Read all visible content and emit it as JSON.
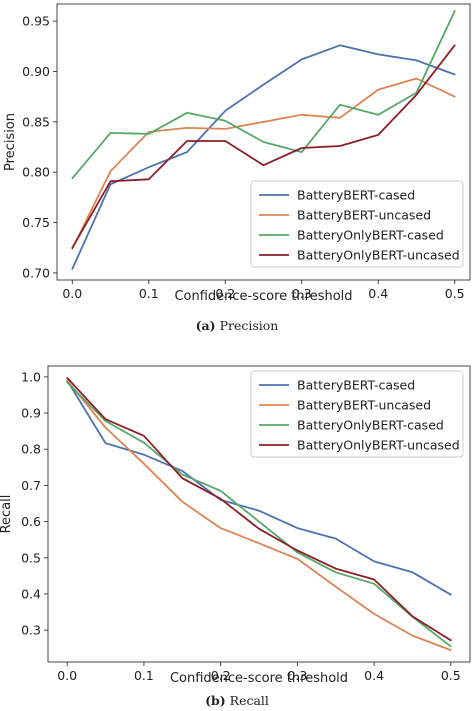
{
  "chart_data": [
    {
      "type": "line",
      "caption_label": "(a)",
      "caption_text": "Precision",
      "xlabel": "Confidence-score threshold",
      "ylabel": "Precision",
      "x": [
        0.0,
        0.05,
        0.1,
        0.15,
        0.2,
        0.25,
        0.3,
        0.35,
        0.4,
        0.45,
        0.5
      ],
      "xlim": [
        -0.02,
        0.52
      ],
      "ylim": [
        0.693,
        0.967
      ],
      "xticks": [
        "0.0",
        "0.1",
        "0.2",
        "0.3",
        "0.4",
        "0.5"
      ],
      "xtick_values": [
        0.0,
        0.1,
        0.2,
        0.3,
        0.4,
        0.5
      ],
      "yticks": [
        "0.70",
        "0.75",
        "0.80",
        "0.85",
        "0.90",
        "0.95"
      ],
      "ytick_values": [
        0.7,
        0.75,
        0.8,
        0.85,
        0.9,
        0.95
      ],
      "legend_position": "bottom-right",
      "grid": false,
      "series": [
        {
          "name": "BatteryBERT-cased",
          "color": "#4c72b0",
          "values": [
            0.704,
            0.788,
            0.805,
            0.82,
            0.861,
            0.887,
            0.912,
            0.926,
            0.917,
            0.911,
            0.897
          ]
        },
        {
          "name": "BatteryBERT-uncased",
          "color": "#dd8452",
          "values": [
            0.724,
            0.801,
            0.84,
            0.844,
            0.843,
            0.85,
            0.857,
            0.854,
            0.882,
            0.893,
            0.875
          ]
        },
        {
          "name": "BatteryOnlyBERT-cased",
          "color": "#55a868",
          "values": [
            0.794,
            0.839,
            0.838,
            0.859,
            0.851,
            0.83,
            0.82,
            0.867,
            0.857,
            0.879,
            0.96
          ]
        },
        {
          "name": "BatteryOnlyBERT-uncased",
          "color": "#8c1f28",
          "values": [
            0.725,
            0.791,
            0.793,
            0.831,
            0.831,
            0.807,
            0.824,
            0.826,
            0.837,
            0.877,
            0.926
          ]
        }
      ]
    },
    {
      "type": "line",
      "caption_label": "(b)",
      "caption_text": "Recall",
      "xlabel": "Confidence-score threshold",
      "ylabel": "Recall",
      "x": [
        0.0,
        0.05,
        0.1,
        0.15,
        0.2,
        0.25,
        0.3,
        0.35,
        0.4,
        0.45,
        0.5
      ],
      "xlim": [
        -0.025,
        0.525
      ],
      "ylim": [
        0.212,
        1.03
      ],
      "xticks": [
        "0.0",
        "0.1",
        "0.2",
        "0.3",
        "0.4",
        "0.5"
      ],
      "xtick_values": [
        0.0,
        0.1,
        0.2,
        0.3,
        0.4,
        0.5
      ],
      "yticks": [
        "0.3",
        "0.4",
        "0.5",
        "0.6",
        "0.7",
        "0.8",
        "0.9",
        "1.0"
      ],
      "ytick_values": [
        0.3,
        0.4,
        0.5,
        0.6,
        0.7,
        0.8,
        0.9,
        1.0
      ],
      "legend_position": "top-right",
      "grid": false,
      "series": [
        {
          "name": "BatteryBERT-cased",
          "color": "#4c72b0",
          "values": [
            0.99,
            0.817,
            0.785,
            0.74,
            0.66,
            0.63,
            0.582,
            0.553,
            0.49,
            0.46,
            0.398
          ]
        },
        {
          "name": "BatteryBERT-uncased",
          "color": "#dd8452",
          "values": [
            0.99,
            0.86,
            0.76,
            0.655,
            0.582,
            0.54,
            0.497,
            0.42,
            0.345,
            0.285,
            0.245
          ]
        },
        {
          "name": "BatteryOnlyBERT-cased",
          "color": "#55a868",
          "values": [
            0.985,
            0.878,
            0.818,
            0.73,
            0.685,
            0.6,
            0.515,
            0.46,
            0.428,
            0.337,
            0.255
          ]
        },
        {
          "name": "BatteryOnlyBERT-uncased",
          "color": "#8c1f28",
          "values": [
            0.997,
            0.883,
            0.837,
            0.72,
            0.663,
            0.58,
            0.52,
            0.47,
            0.44,
            0.338,
            0.272
          ]
        }
      ]
    }
  ]
}
